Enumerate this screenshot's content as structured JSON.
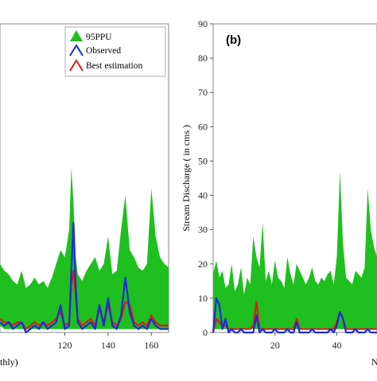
{
  "chart_data": [
    {
      "type": "area",
      "xlabel_fragment": "thly)",
      "xticks": [
        120,
        140,
        160
      ],
      "xlim": [
        90,
        168
      ],
      "ylim": [
        0,
        90
      ],
      "legend_placement": "top-right",
      "legend": [
        {
          "name": "95PPU",
          "color": "#1fbf1f",
          "symbol": "triangle-filled"
        },
        {
          "name": "Observed",
          "color": "#1a2bd8",
          "symbol": "triangle-outline"
        },
        {
          "name": "Best estimation",
          "color": "#d81e1e",
          "symbol": "triangle-outline"
        }
      ],
      "x": [
        90,
        92,
        94,
        96,
        98,
        100,
        102,
        104,
        106,
        108,
        110,
        112,
        114,
        116,
        118,
        120,
        122,
        123,
        124,
        125,
        126,
        128,
        130,
        132,
        134,
        136,
        138,
        140,
        142,
        144,
        146,
        148,
        150,
        152,
        154,
        156,
        158,
        160,
        162,
        164,
        166,
        168
      ],
      "series": [
        {
          "name": "95PPU",
          "upper": [
            20,
            18,
            17,
            15,
            14,
            18,
            13,
            14,
            16,
            14,
            15,
            13,
            16,
            20,
            24,
            22,
            30,
            48,
            38,
            22,
            17,
            15,
            18,
            20,
            22,
            18,
            20,
            28,
            17,
            18,
            30,
            40,
            24,
            22,
            19,
            18,
            20,
            42,
            28,
            22,
            20,
            19
          ],
          "lower": [
            2,
            1,
            1,
            1,
            1,
            1,
            1,
            1,
            1,
            1,
            1,
            1,
            1,
            1,
            1,
            1,
            1,
            1,
            1,
            1,
            1,
            1,
            1,
            1,
            1,
            1,
            1,
            1,
            1,
            1,
            1,
            1,
            1,
            1,
            1,
            1,
            1,
            1,
            1,
            1,
            1,
            1
          ]
        },
        {
          "name": "Observed",
          "values": [
            3,
            2,
            3,
            1,
            2,
            3,
            0,
            1,
            2,
            1,
            3,
            1,
            2,
            3,
            8,
            1,
            2,
            18,
            32,
            14,
            3,
            1,
            2,
            3,
            1,
            8,
            2,
            10,
            2,
            1,
            5,
            16,
            6,
            2,
            1,
            2,
            1,
            4,
            2,
            1,
            1,
            1
          ]
        },
        {
          "name": "Best estimation",
          "values": [
            4,
            3,
            3,
            2,
            3,
            3,
            1,
            2,
            3,
            2,
            3,
            2,
            3,
            4,
            6,
            2,
            3,
            14,
            18,
            11,
            4,
            2,
            3,
            4,
            2,
            7,
            3,
            8,
            3,
            2,
            4,
            9,
            8,
            3,
            2,
            3,
            2,
            5,
            3,
            2,
            2,
            2
          ]
        }
      ]
    },
    {
      "type": "area",
      "panel_label": "(b)",
      "ylabel": "Stream Discharge ( in cms )",
      "xlabel_fragment": "N",
      "yticks": [
        0,
        10,
        20,
        30,
        40,
        50,
        60,
        70,
        80,
        90
      ],
      "xticks": [
        20,
        40
      ],
      "xlim": [
        0,
        53
      ],
      "ylim": [
        0,
        90
      ],
      "x": [
        0,
        1,
        2,
        3,
        4,
        5,
        6,
        7,
        8,
        9,
        10,
        11,
        12,
        13,
        14,
        15,
        16,
        17,
        18,
        19,
        20,
        21,
        22,
        23,
        24,
        25,
        26,
        27,
        28,
        29,
        30,
        31,
        32,
        33,
        34,
        35,
        36,
        37,
        38,
        39,
        40,
        41,
        42,
        43,
        44,
        45,
        46,
        47,
        48,
        49,
        50,
        51,
        52,
        53
      ],
      "series": [
        {
          "name": "95PPU",
          "upper": [
            17,
            21,
            16,
            18,
            13,
            14,
            20,
            12,
            14,
            19,
            11,
            16,
            14,
            28,
            22,
            19,
            32,
            15,
            18,
            14,
            21,
            16,
            15,
            13,
            22,
            17,
            14,
            20,
            18,
            16,
            14,
            16,
            19,
            15,
            14,
            16,
            15,
            17,
            18,
            14,
            22,
            47,
            26,
            16,
            15,
            14,
            18,
            17,
            16,
            19,
            42,
            30,
            25,
            22
          ],
          "lower": [
            1,
            1,
            1,
            1,
            1,
            1,
            1,
            1,
            1,
            1,
            1,
            1,
            1,
            1,
            1,
            1,
            1,
            1,
            1,
            1,
            1,
            1,
            1,
            1,
            1,
            1,
            1,
            1,
            1,
            1,
            1,
            1,
            1,
            1,
            1,
            1,
            1,
            1,
            1,
            1,
            1,
            1,
            1,
            1,
            1,
            1,
            1,
            1,
            1,
            1,
            1,
            1,
            1,
            1
          ]
        },
        {
          "name": "Observed",
          "values": [
            0,
            10,
            8,
            1,
            4,
            0,
            1,
            0,
            0,
            1,
            0,
            0,
            0,
            0,
            5,
            0,
            1,
            0,
            0,
            0,
            1,
            0,
            0,
            0,
            1,
            0,
            0,
            3,
            0,
            0,
            0,
            0,
            1,
            0,
            0,
            0,
            0,
            0,
            1,
            0,
            2,
            6,
            4,
            0,
            0,
            0,
            1,
            0,
            0,
            0,
            1,
            0,
            0,
            0
          ]
        },
        {
          "name": "Best estimation",
          "values": [
            0,
            4,
            3,
            2,
            2,
            1,
            1,
            1,
            1,
            1,
            1,
            1,
            1,
            2,
            9,
            1,
            1,
            1,
            1,
            1,
            1,
            1,
            1,
            1,
            1,
            1,
            1,
            4,
            1,
            1,
            1,
            1,
            1,
            1,
            1,
            1,
            1,
            1,
            1,
            1,
            3,
            6,
            4,
            1,
            1,
            1,
            1,
            1,
            1,
            1,
            1,
            1,
            1,
            1
          ]
        }
      ]
    }
  ]
}
